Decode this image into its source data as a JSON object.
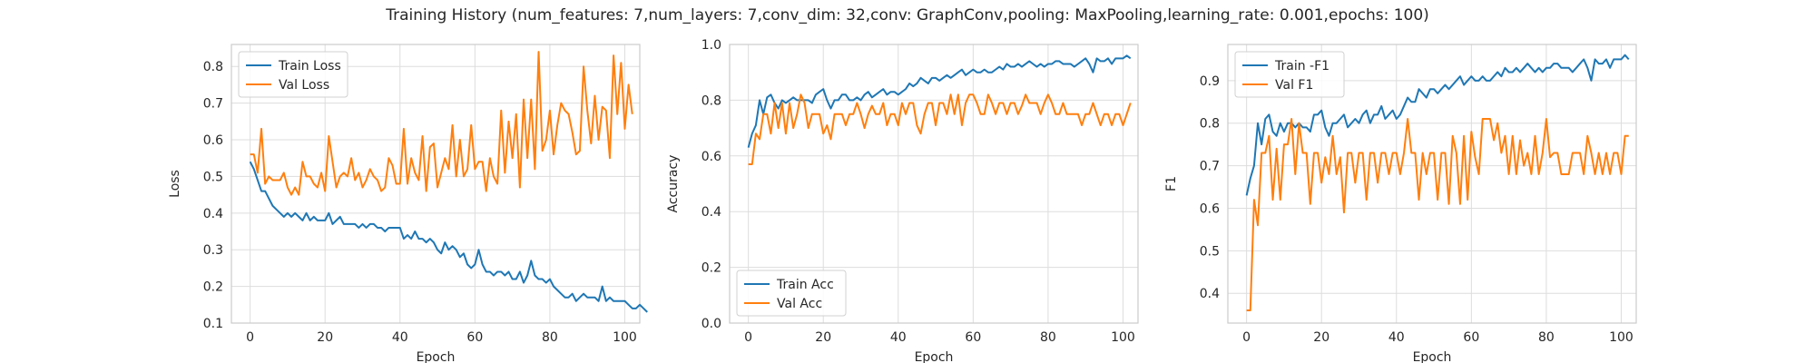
{
  "figure": {
    "title": "Training History (num_features: 7,num_layers: 7,conv_dim: 32,conv: GraphConv,pooling: MaxPooling,learning_rate: 0.001,epochs: 100)"
  },
  "colors": {
    "train": "#1f77b4",
    "val": "#ff7f0e",
    "grid": "#dddddd",
    "frame": "#cccccc"
  },
  "chart_data": [
    {
      "type": "line",
      "xlabel": "Epoch",
      "ylabel": "Loss",
      "xlim": [
        -5,
        104
      ],
      "ylim": [
        0.1,
        0.86
      ],
      "xticks": [
        0,
        20,
        40,
        60,
        80,
        100
      ],
      "yticks": [
        0.1,
        0.2,
        0.3,
        0.4,
        0.5,
        0.6,
        0.7,
        0.8
      ],
      "ytick_labels": [
        "0.1",
        "0.2",
        "0.3",
        "0.4",
        "0.5",
        "0.6",
        "0.7",
        "0.8"
      ],
      "legend": "top-left",
      "grid": true,
      "series": [
        {
          "name": "Train Loss",
          "values": [
            0.54,
            0.52,
            0.49,
            0.46,
            0.46,
            0.44,
            0.42,
            0.41,
            0.4,
            0.39,
            0.4,
            0.39,
            0.4,
            0.39,
            0.38,
            0.4,
            0.38,
            0.39,
            0.38,
            0.38,
            0.38,
            0.4,
            0.37,
            0.38,
            0.39,
            0.37,
            0.37,
            0.37,
            0.37,
            0.36,
            0.37,
            0.36,
            0.37,
            0.37,
            0.36,
            0.36,
            0.35,
            0.36,
            0.36,
            0.36,
            0.36,
            0.33,
            0.34,
            0.33,
            0.35,
            0.33,
            0.33,
            0.32,
            0.33,
            0.32,
            0.3,
            0.29,
            0.32,
            0.3,
            0.31,
            0.3,
            0.28,
            0.29,
            0.26,
            0.25,
            0.26,
            0.3,
            0.26,
            0.24,
            0.24,
            0.23,
            0.24,
            0.24,
            0.23,
            0.24,
            0.22,
            0.22,
            0.24,
            0.21,
            0.23,
            0.27,
            0.23,
            0.22,
            0.22,
            0.21,
            0.22,
            0.2,
            0.19,
            0.18,
            0.17,
            0.17,
            0.18,
            0.16,
            0.17,
            0.18,
            0.17,
            0.17,
            0.17,
            0.16,
            0.2,
            0.16,
            0.17,
            0.16,
            0.16,
            0.16,
            0.16,
            0.15,
            0.14,
            0.14,
            0.15,
            0.14,
            0.13
          ]
        },
        {
          "name": "Val Loss",
          "values": [
            0.56,
            0.56,
            0.51,
            0.63,
            0.48,
            0.5,
            0.49,
            0.49,
            0.49,
            0.51,
            0.47,
            0.45,
            0.47,
            0.45,
            0.54,
            0.5,
            0.5,
            0.48,
            0.47,
            0.51,
            0.46,
            0.61,
            0.54,
            0.47,
            0.5,
            0.51,
            0.5,
            0.55,
            0.49,
            0.51,
            0.47,
            0.49,
            0.52,
            0.5,
            0.49,
            0.46,
            0.47,
            0.55,
            0.53,
            0.48,
            0.48,
            0.63,
            0.48,
            0.55,
            0.51,
            0.49,
            0.61,
            0.46,
            0.58,
            0.59,
            0.47,
            0.51,
            0.55,
            0.52,
            0.64,
            0.5,
            0.6,
            0.5,
            0.52,
            0.64,
            0.52,
            0.54,
            0.54,
            0.46,
            0.55,
            0.5,
            0.48,
            0.68,
            0.51,
            0.65,
            0.55,
            0.67,
            0.47,
            0.71,
            0.55,
            0.71,
            0.52,
            0.84,
            0.57,
            0.6,
            0.68,
            0.56,
            0.64,
            0.7,
            0.68,
            0.67,
            0.62,
            0.56,
            0.57,
            0.8,
            0.68,
            0.59,
            0.72,
            0.6,
            0.69,
            0.68,
            0.55,
            0.83,
            0.67,
            0.81,
            0.63,
            0.75,
            0.67
          ]
        }
      ]
    },
    {
      "type": "line",
      "xlabel": "Epoch",
      "ylabel": "Accuracy",
      "xlim": [
        -5,
        104
      ],
      "ylim": [
        0.0,
        1.0
      ],
      "xticks": [
        0,
        20,
        40,
        60,
        80,
        100
      ],
      "yticks": [
        0.0,
        0.2,
        0.4,
        0.6,
        0.8,
        1.0
      ],
      "ytick_labels": [
        "0.0",
        "0.2",
        "0.4",
        "0.6",
        "0.8",
        "1.0"
      ],
      "legend": "bottom-left",
      "grid": true,
      "series": [
        {
          "name": "Train Acc",
          "values": [
            0.63,
            0.68,
            0.71,
            0.8,
            0.75,
            0.81,
            0.82,
            0.79,
            0.77,
            0.8,
            0.79,
            0.8,
            0.81,
            0.8,
            0.8,
            0.8,
            0.8,
            0.79,
            0.82,
            0.83,
            0.84,
            0.8,
            0.77,
            0.8,
            0.8,
            0.82,
            0.82,
            0.8,
            0.8,
            0.81,
            0.8,
            0.82,
            0.83,
            0.81,
            0.82,
            0.83,
            0.84,
            0.82,
            0.83,
            0.83,
            0.82,
            0.83,
            0.84,
            0.86,
            0.85,
            0.86,
            0.88,
            0.87,
            0.86,
            0.88,
            0.88,
            0.87,
            0.88,
            0.89,
            0.88,
            0.89,
            0.9,
            0.91,
            0.89,
            0.9,
            0.91,
            0.9,
            0.9,
            0.91,
            0.9,
            0.9,
            0.91,
            0.92,
            0.91,
            0.93,
            0.92,
            0.92,
            0.93,
            0.92,
            0.93,
            0.94,
            0.93,
            0.92,
            0.93,
            0.92,
            0.93,
            0.93,
            0.94,
            0.94,
            0.93,
            0.93,
            0.93,
            0.92,
            0.93,
            0.94,
            0.95,
            0.93,
            0.9,
            0.95,
            0.94,
            0.94,
            0.95,
            0.93,
            0.95,
            0.95,
            0.95,
            0.96,
            0.95
          ]
        },
        {
          "name": "Val Acc",
          "values": [
            0.57,
            0.57,
            0.68,
            0.66,
            0.75,
            0.75,
            0.68,
            0.79,
            0.7,
            0.79,
            0.68,
            0.79,
            0.7,
            0.75,
            0.82,
            0.79,
            0.7,
            0.75,
            0.75,
            0.75,
            0.68,
            0.71,
            0.66,
            0.75,
            0.75,
            0.75,
            0.71,
            0.75,
            0.75,
            0.79,
            0.75,
            0.7,
            0.75,
            0.78,
            0.75,
            0.75,
            0.79,
            0.71,
            0.75,
            0.75,
            0.71,
            0.79,
            0.75,
            0.79,
            0.79,
            0.71,
            0.68,
            0.75,
            0.79,
            0.79,
            0.71,
            0.79,
            0.79,
            0.75,
            0.82,
            0.75,
            0.82,
            0.71,
            0.79,
            0.82,
            0.82,
            0.79,
            0.75,
            0.75,
            0.82,
            0.79,
            0.75,
            0.79,
            0.79,
            0.75,
            0.79,
            0.79,
            0.75,
            0.78,
            0.82,
            0.79,
            0.79,
            0.79,
            0.75,
            0.79,
            0.82,
            0.79,
            0.75,
            0.75,
            0.79,
            0.75,
            0.75,
            0.75,
            0.75,
            0.71,
            0.75,
            0.75,
            0.79,
            0.75,
            0.71,
            0.75,
            0.75,
            0.71,
            0.75,
            0.75,
            0.71,
            0.75,
            0.79
          ]
        }
      ]
    },
    {
      "type": "line",
      "xlabel": "Epoch",
      "ylabel": "F1",
      "xlim": [
        -5,
        104
      ],
      "ylim": [
        0.33,
        0.985
      ],
      "xticks": [
        0,
        20,
        40,
        60,
        80,
        100
      ],
      "yticks": [
        0.4,
        0.5,
        0.6,
        0.7,
        0.8,
        0.9
      ],
      "ytick_labels": [
        "0.4",
        "0.5",
        "0.6",
        "0.7",
        "0.8",
        "0.9"
      ],
      "legend": "top-left",
      "grid": true,
      "series": [
        {
          "name": "Train -F1",
          "values": [
            0.63,
            0.67,
            0.7,
            0.8,
            0.75,
            0.81,
            0.82,
            0.78,
            0.77,
            0.8,
            0.78,
            0.8,
            0.8,
            0.79,
            0.8,
            0.79,
            0.79,
            0.78,
            0.82,
            0.82,
            0.83,
            0.79,
            0.77,
            0.8,
            0.8,
            0.81,
            0.82,
            0.79,
            0.8,
            0.81,
            0.8,
            0.82,
            0.83,
            0.8,
            0.82,
            0.82,
            0.84,
            0.81,
            0.82,
            0.83,
            0.81,
            0.82,
            0.84,
            0.86,
            0.85,
            0.85,
            0.88,
            0.87,
            0.86,
            0.88,
            0.88,
            0.87,
            0.88,
            0.89,
            0.88,
            0.89,
            0.9,
            0.91,
            0.89,
            0.9,
            0.91,
            0.9,
            0.9,
            0.91,
            0.9,
            0.9,
            0.91,
            0.92,
            0.91,
            0.93,
            0.92,
            0.92,
            0.93,
            0.92,
            0.93,
            0.94,
            0.93,
            0.92,
            0.93,
            0.92,
            0.93,
            0.93,
            0.94,
            0.94,
            0.93,
            0.93,
            0.93,
            0.92,
            0.93,
            0.94,
            0.95,
            0.93,
            0.9,
            0.95,
            0.94,
            0.94,
            0.95,
            0.93,
            0.95,
            0.95,
            0.95,
            0.96,
            0.95
          ]
        },
        {
          "name": "Val F1",
          "values": [
            0.36,
            0.36,
            0.62,
            0.56,
            0.73,
            0.73,
            0.77,
            0.62,
            0.74,
            0.62,
            0.75,
            0.75,
            0.81,
            0.68,
            0.8,
            0.73,
            0.73,
            0.61,
            0.73,
            0.73,
            0.66,
            0.72,
            0.68,
            0.77,
            0.68,
            0.72,
            0.59,
            0.73,
            0.73,
            0.66,
            0.73,
            0.73,
            0.62,
            0.73,
            0.73,
            0.66,
            0.73,
            0.73,
            0.68,
            0.73,
            0.73,
            0.68,
            0.73,
            0.81,
            0.73,
            0.73,
            0.62,
            0.73,
            0.68,
            0.73,
            0.73,
            0.62,
            0.73,
            0.73,
            0.61,
            0.77,
            0.73,
            0.61,
            0.77,
            0.62,
            0.78,
            0.72,
            0.68,
            0.81,
            0.81,
            0.81,
            0.76,
            0.8,
            0.73,
            0.77,
            0.68,
            0.77,
            0.68,
            0.76,
            0.7,
            0.73,
            0.68,
            0.77,
            0.68,
            0.73,
            0.81,
            0.72,
            0.73,
            0.73,
            0.68,
            0.68,
            0.68,
            0.73,
            0.73,
            0.73,
            0.68,
            0.77,
            0.73,
            0.68,
            0.73,
            0.68,
            0.73,
            0.68,
            0.73,
            0.73,
            0.68,
            0.77,
            0.77
          ]
        }
      ]
    }
  ]
}
